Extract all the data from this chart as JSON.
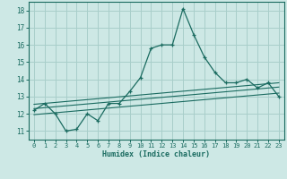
{
  "xlabel": "Humidex (Indice chaleur)",
  "bg_color": "#cde8e5",
  "grid_color": "#a8ceca",
  "line_color": "#1a6b60",
  "xlim": [
    -0.5,
    23.5
  ],
  "ylim": [
    10.5,
    18.5
  ],
  "xticks": [
    0,
    1,
    2,
    3,
    4,
    5,
    6,
    7,
    8,
    9,
    10,
    11,
    12,
    13,
    14,
    15,
    16,
    17,
    18,
    19,
    20,
    21,
    22,
    23
  ],
  "yticks": [
    11,
    12,
    13,
    14,
    15,
    16,
    17,
    18
  ],
  "main_x": [
    0,
    1,
    2,
    3,
    4,
    5,
    6,
    7,
    8,
    9,
    10,
    11,
    12,
    13,
    14,
    15,
    16,
    17,
    18,
    19,
    20,
    21,
    22,
    23
  ],
  "main_y": [
    12.2,
    12.6,
    12.0,
    11.0,
    11.1,
    12.0,
    11.6,
    12.6,
    12.6,
    13.3,
    14.1,
    15.8,
    16.0,
    16.0,
    18.1,
    16.6,
    15.3,
    14.4,
    13.8,
    13.8,
    14.0,
    13.5,
    13.8,
    13.0
  ],
  "line1_x": [
    0,
    23
  ],
  "line1_y": [
    12.3,
    13.55
  ],
  "line2_x": [
    0,
    23
  ],
  "line2_y": [
    12.55,
    13.8
  ],
  "line3_x": [
    0,
    23
  ],
  "line3_y": [
    11.95,
    13.2
  ]
}
